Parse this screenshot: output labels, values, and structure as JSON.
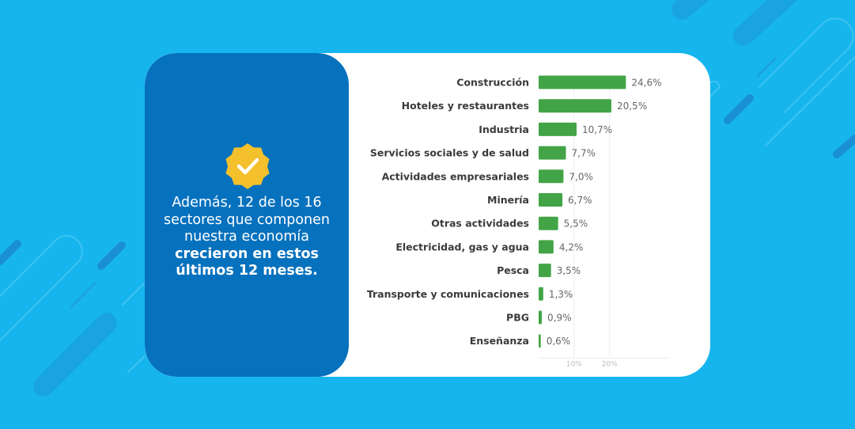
{
  "message": {
    "normal_text": "Además, 12 de los 16 sectores que componen nuestra economía",
    "bold_text": "crecieron en estos últimos 12 meses."
  },
  "badge": {
    "icon": "check-badge-icon",
    "color": "#f4c02b"
  },
  "colors": {
    "background": "#16b5ee",
    "panel": "#0671bd",
    "bar": "#43a447"
  },
  "chart_data": {
    "type": "bar",
    "orientation": "horizontal",
    "categories": [
      "Construcción",
      "Hoteles y restaurantes",
      "Industria",
      "Servicios sociales y de salud",
      "Actividades empresariales",
      "Minería",
      "Otras actividades",
      "Electricidad, gas y agua",
      "Pesca",
      "Transporte y comunicaciones",
      "PBG",
      "Enseñanza"
    ],
    "values": [
      24.6,
      20.5,
      10.7,
      7.7,
      7.0,
      6.7,
      5.5,
      4.2,
      3.5,
      1.3,
      0.9,
      0.6
    ],
    "value_labels": [
      "24,6%",
      "20,5%",
      "10,7%",
      "7,7%",
      "7,0%",
      "6,7%",
      "5,5%",
      "4,2%",
      "3,5%",
      "1,3%",
      "0,9%",
      "0,6%"
    ],
    "ticks": [
      10,
      20
    ],
    "tick_labels": [
      "10%",
      "20%"
    ],
    "xlim": [
      0,
      37
    ],
    "grid": true
  }
}
